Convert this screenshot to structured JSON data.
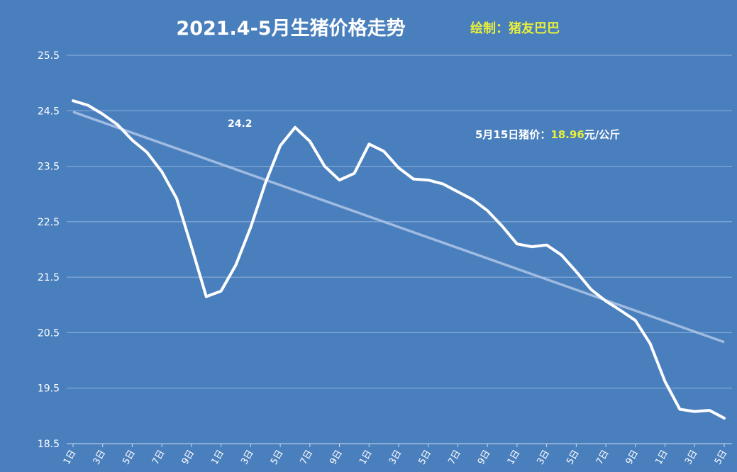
{
  "colors": {
    "background": "#4a7fbd",
    "line": "#ffffff",
    "trend": "#a9c2e4",
    "accent": "#e8ef3a"
  },
  "chart_data": {
    "type": "line",
    "title": "2021.4-5月生猪价格走势",
    "credit": "绘制：猪友巴巴",
    "annotations": {
      "peak_value": "24.2",
      "latest_prefix": "5月15日猪价：",
      "latest_value": "18.96",
      "latest_unit": "元/公斤"
    },
    "ylim": [
      18.5,
      25.5
    ],
    "yticks": [
      "18.5",
      "19.5",
      "20.5",
      "21.5",
      "22.5",
      "23.5",
      "24.5",
      "25.5"
    ],
    "x_tick_labels": [
      "1日",
      "3日",
      "5日",
      "7日",
      "9日",
      "1日",
      "3日",
      "5日",
      "7日",
      "9日",
      "1日",
      "3日",
      "5日",
      "7日",
      "9日",
      "1日",
      "3日",
      "5日",
      "7日",
      "9日",
      "1日",
      "3日",
      "5日"
    ],
    "series": [
      {
        "values": [
          24.68,
          24.6,
          24.44,
          24.25,
          23.97,
          23.75,
          23.4,
          22.92,
          22.05,
          21.15,
          21.25,
          21.72,
          22.4,
          23.2,
          23.87,
          24.2,
          23.95,
          23.5,
          23.25,
          23.37,
          23.9,
          23.77,
          23.47,
          23.27,
          23.25,
          23.18,
          23.04,
          22.9,
          22.7,
          22.42,
          22.1,
          22.05,
          22.08,
          21.9,
          21.6,
          21.28,
          21.07,
          20.9,
          20.72,
          20.3,
          19.62,
          19.12,
          19.08,
          19.1,
          18.96
        ]
      }
    ],
    "trend": {
      "start": 24.48,
      "end": 20.33
    },
    "grid": true
  }
}
